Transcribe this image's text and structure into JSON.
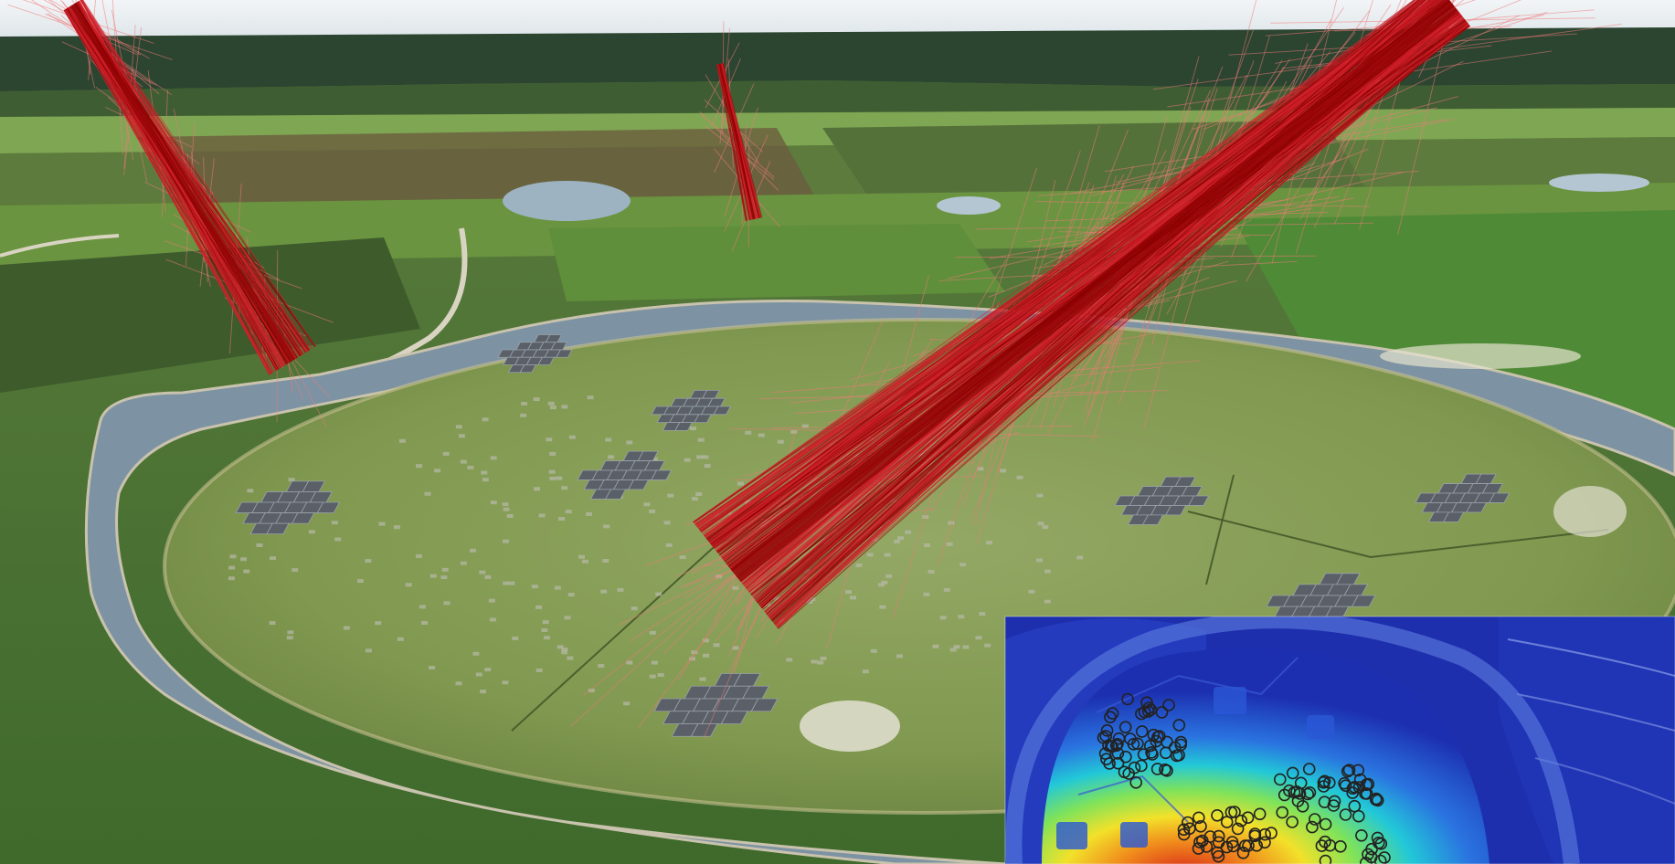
{
  "scene": {
    "colors": {
      "sky": "#e9eef1",
      "treeline": "#27402a",
      "field_light": "#6f9c45",
      "field_dark": "#4f6b32",
      "field_brown": "#6b5e3e",
      "meadow": "#7f9650",
      "river": "#7f96a6",
      "river_edge": "#c9c3ad",
      "path": "#d9d4c2",
      "tile": "#5b6068",
      "tile_edge": "#9aa1a8",
      "shower_core": "#8a0000",
      "shower_mid": "#d2202a",
      "shower_halo": "#f07a7a",
      "inset_outer": "#1c2fb0",
      "inset_hot": "#e02b12",
      "ring_mark": "#222222"
    },
    "icons": {
      "showers": "cosmic-ray-shower-icon",
      "stations": "antenna-station-icon",
      "inset": "radio-footprint-heatmap-icon"
    }
  }
}
